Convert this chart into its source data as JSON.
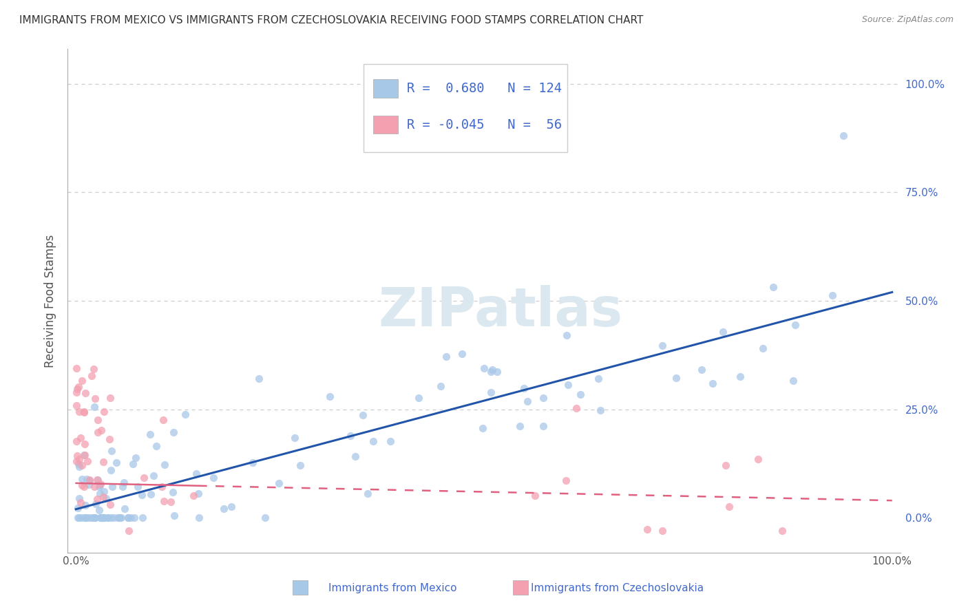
{
  "title": "IMMIGRANTS FROM MEXICO VS IMMIGRANTS FROM CZECHOSLOVAKIA RECEIVING FOOD STAMPS CORRELATION CHART",
  "source": "Source: ZipAtlas.com",
  "ylabel": "Receiving Food Stamps",
  "R1": 0.68,
  "N1": 124,
  "R2": -0.045,
  "N2": 56,
  "color_mexico": "#A8C8E8",
  "color_czecho": "#F4A0B0",
  "line_color_mexico": "#2255AA",
  "line_color_czecho": "#E06080",
  "background_color": "#FFFFFF",
  "watermark": "ZIPatlas",
  "tick_color": "#4169CD",
  "grid_color": "#CCCCCC",
  "title_color": "#333333",
  "ylabel_color": "#555555"
}
